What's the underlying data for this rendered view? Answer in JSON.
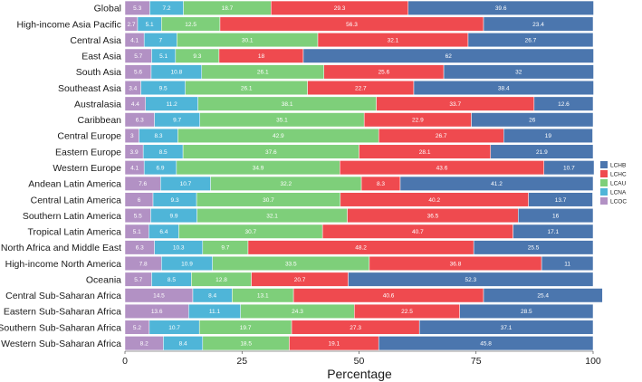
{
  "chart_data": {
    "type": "bar",
    "orientation": "horizontal",
    "stacked": true,
    "title": "",
    "xlabel": "Percentage",
    "ylabel": "",
    "xlim": [
      0,
      100
    ],
    "xticks": [
      "0",
      "25",
      "50",
      "75",
      "100"
    ],
    "legend_position": "right",
    "categories": [
      "Global",
      "High-income Asia Pacific",
      "Central Asia",
      "East Asia",
      "South Asia",
      "Southeast Asia",
      "Australasia",
      "Caribbean",
      "Central Europe",
      "Eastern Europe",
      "Western Europe",
      "Andean Latin America",
      "Central Latin America",
      "Southern Latin America",
      "Tropical Latin America",
      "North Africa and Middle East",
      "High-income North America",
      "Oceania",
      "Central Sub-Saharan Africa",
      "Eastern Sub-Saharan Africa",
      "Southern Sub-Saharan Africa",
      "Western Sub-Saharan Africa"
    ],
    "series": [
      {
        "name": "LCOC",
        "color": "#b291c4",
        "values": [
          5.3,
          2.7,
          4.1,
          5.7,
          5.6,
          3.4,
          4.4,
          6.3,
          3,
          3.9,
          4.1,
          7.6,
          6,
          5.5,
          5.1,
          6.3,
          7.8,
          5.7,
          14.5,
          13.6,
          5.2,
          8.2
        ]
      },
      {
        "name": "LCNA",
        "color": "#4fb5d8",
        "values": [
          7.2,
          5.1,
          7,
          5.1,
          10.8,
          9.5,
          11.2,
          9.7,
          8.3,
          8.5,
          6.9,
          10.7,
          9.3,
          9.9,
          6.4,
          10.3,
          10.9,
          8.5,
          8.4,
          11.1,
          10.7,
          8.4
        ]
      },
      {
        "name": "LCAU",
        "color": "#7ecf7a",
        "values": [
          18.7,
          12.5,
          30.1,
          9.3,
          26.1,
          26.1,
          38.1,
          35.1,
          42.9,
          37.6,
          34.9,
          32.2,
          30.7,
          32.1,
          30.7,
          9.7,
          33.5,
          12.8,
          13.1,
          24.3,
          19.7,
          18.5
        ]
      },
      {
        "name": "LCHC",
        "color": "#ef4a4f",
        "values": [
          29.3,
          56.3,
          32.1,
          18,
          25.6,
          22.7,
          33.7,
          22.9,
          26.7,
          28.1,
          43.6,
          8.3,
          40.2,
          36.5,
          40.7,
          48.2,
          36.8,
          20.7,
          40.6,
          22.5,
          27.3,
          19.1
        ]
      },
      {
        "name": "LCHB",
        "color": "#4b76ae",
        "values": [
          39.6,
          23.4,
          26.7,
          62,
          32,
          38.4,
          12.6,
          26,
          19,
          21.9,
          10.7,
          41.2,
          13.7,
          16,
          17.1,
          25.5,
          11,
          52.3,
          25.4,
          28.5,
          37.1,
          45.8
        ]
      }
    ],
    "legend_order": [
      "LCHB",
      "LCHC",
      "LCAU",
      "LCNA",
      "LCOC"
    ]
  }
}
